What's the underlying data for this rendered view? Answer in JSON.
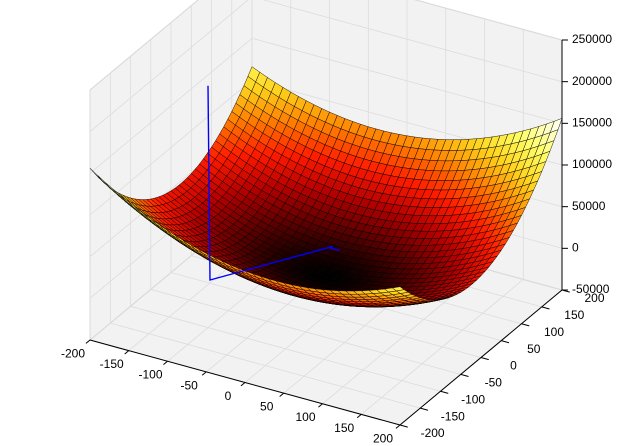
{
  "colors": {
    "background": "#ffffff",
    "pane": "#f2f2f2",
    "pane_edge": "#cfcfcf",
    "grid": "#dcdcdc",
    "mesh_edge": "#000000",
    "path": "#0000ff",
    "colormap": [
      "#000000",
      "#5a0000",
      "#b40000",
      "#ff1a00",
      "#ff7a00",
      "#ffd21a",
      "#ffff66",
      "#ffffe6"
    ]
  },
  "chart_data": {
    "type": "surface3d",
    "title": "",
    "xlabel": "",
    "ylabel": "",
    "zlabel": "",
    "colormap": "hot",
    "xlim": [
      -200,
      200
    ],
    "ylim": [
      -200,
      200
    ],
    "zlim": [
      -50000,
      250000
    ],
    "x_ticks": [
      "-200",
      "-150",
      "-100",
      "-50",
      "0",
      "50",
      "100",
      "150",
      "200"
    ],
    "y_ticks": [
      "-200",
      "-150",
      "-100",
      "-50",
      "0",
      "50",
      "100",
      "150",
      "200"
    ],
    "z_ticks": [
      "-50000",
      "0",
      "50000",
      "100000",
      "150000",
      "200000",
      "250000"
    ],
    "surface": {
      "description_formula": "z = 1.3*x^2 + 2.2*y^2 + 0.5*x*y - 4000 (approximate elliptic paraboloid)",
      "x_range": [
        -200,
        200
      ],
      "y_range": [
        -200,
        200
      ],
      "grid_steps": 40,
      "min_value": -4000,
      "corner_values": [
        {
          "x": -200,
          "y": -200,
          "z": 160000
        },
        {
          "x": 200,
          "y": -200,
          "z": 100000
        },
        {
          "x": -200,
          "y": 200,
          "z": 220000
        },
        {
          "x": 200,
          "y": 200,
          "z": 180000
        }
      ]
    },
    "descent_path": {
      "name": "",
      "points": [
        {
          "x": -100,
          "y": -100,
          "z": 240000
        },
        {
          "x": -100,
          "y": -95,
          "z": 5000
        },
        {
          "x": -20,
          "y": 55,
          "z": 5000
        },
        {
          "x": -20,
          "y": 50,
          "z": 5000
        },
        {
          "x": -10,
          "y": 50,
          "z": 5000
        },
        {
          "x": -10,
          "y": 52,
          "z": 5000
        }
      ]
    },
    "grid": true
  }
}
